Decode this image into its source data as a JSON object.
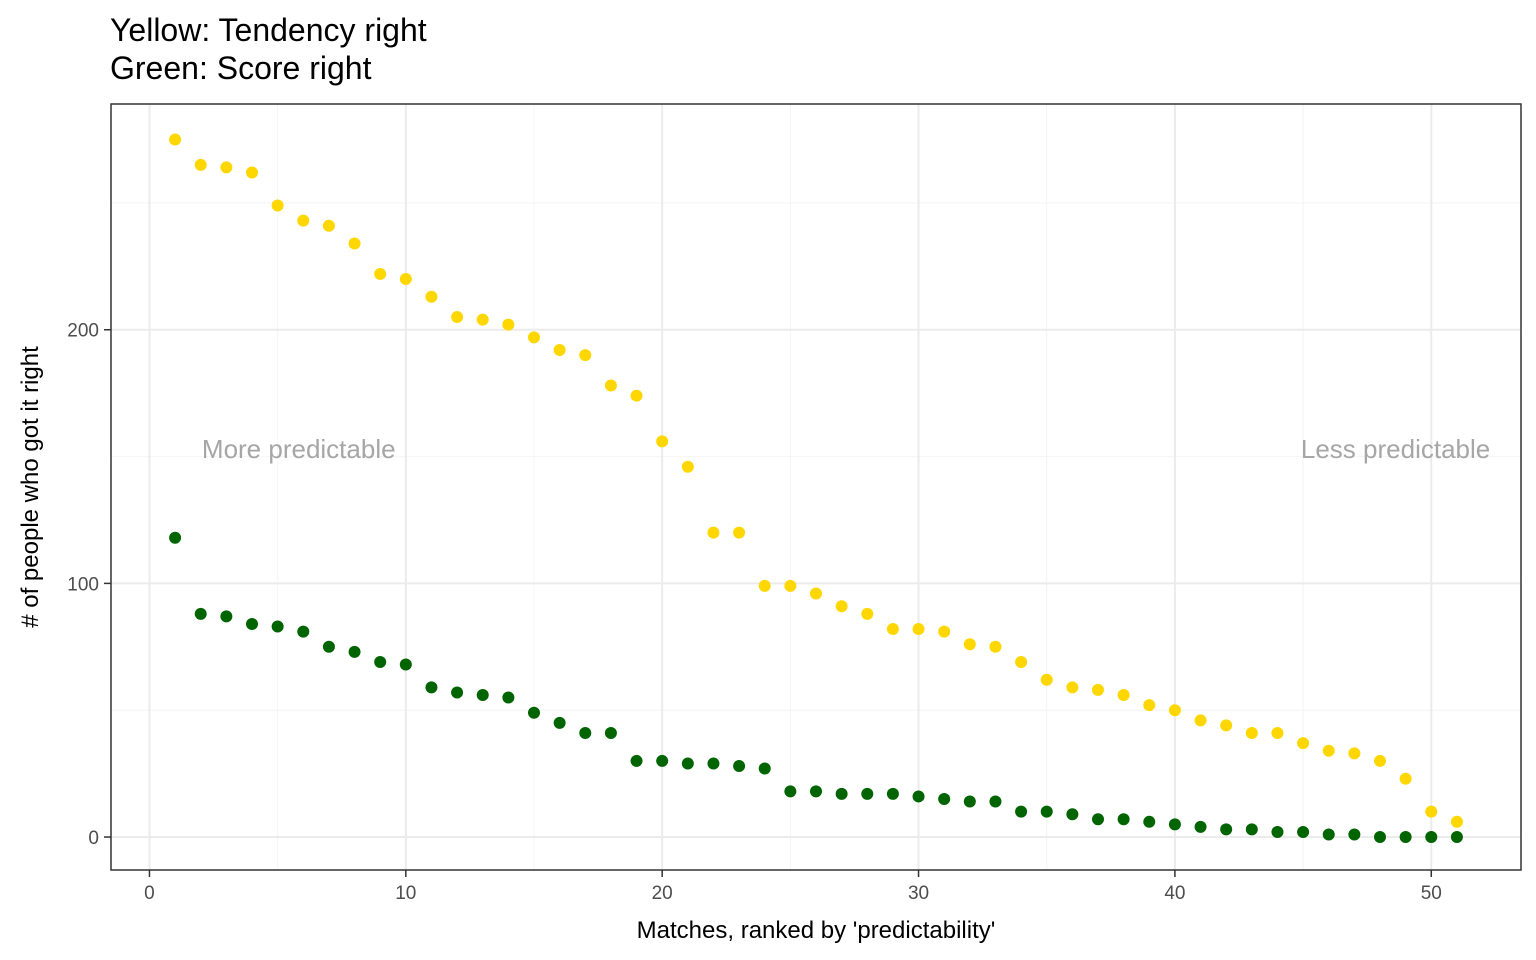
{
  "chart_data": {
    "type": "scatter",
    "title_lines": [
      "Yellow: Tendency right",
      "Green: Score right"
    ],
    "xlabel": "Matches, ranked by 'predictability'",
    "ylabel": "# of people who got it right",
    "xlim": [
      -1.5,
      53.5
    ],
    "ylim": [
      -13,
      289
    ],
    "x_ticks": [
      0,
      10,
      20,
      30,
      40,
      50
    ],
    "y_ticks": [
      0,
      100,
      200
    ],
    "grid": true,
    "annotations": [
      {
        "text": "More predictable",
        "x": 9.6,
        "y": 153
      },
      {
        "text": "Less predictable",
        "x": 52.3,
        "y": 153
      }
    ],
    "series": [
      {
        "color": "#FFD700",
        "x": [
          1,
          2,
          3,
          4,
          5,
          6,
          7,
          8,
          9,
          10,
          11,
          12,
          13,
          14,
          15,
          16,
          17,
          18,
          19,
          20,
          21,
          22,
          23,
          24,
          25,
          26,
          27,
          28,
          29,
          30,
          31,
          32,
          33,
          34,
          35,
          36,
          37,
          38,
          39,
          40,
          41,
          42,
          43,
          44,
          45,
          46,
          47,
          48,
          49,
          50,
          51
        ],
        "y": [
          275,
          265,
          264,
          262,
          249,
          243,
          241,
          234,
          222,
          220,
          213,
          205,
          204,
          202,
          197,
          192,
          190,
          178,
          174,
          156,
          146,
          120,
          120,
          99,
          99,
          96,
          91,
          88,
          82,
          82,
          81,
          76,
          75,
          69,
          62,
          59,
          58,
          56,
          52,
          50,
          46,
          44,
          41,
          41,
          37,
          34,
          33,
          30,
          23,
          10,
          6
        ]
      },
      {
        "color": "#006400",
        "x": [
          1,
          2,
          3,
          4,
          5,
          6,
          7,
          8,
          9,
          10,
          11,
          12,
          13,
          14,
          15,
          16,
          17,
          18,
          19,
          20,
          21,
          22,
          23,
          24,
          25,
          26,
          27,
          28,
          29,
          30,
          31,
          32,
          33,
          34,
          35,
          36,
          37,
          38,
          39,
          40,
          41,
          42,
          43,
          44,
          45,
          46,
          47,
          48,
          49,
          50,
          51
        ],
        "y": [
          118,
          88,
          87,
          84,
          83,
          81,
          75,
          73,
          69,
          68,
          59,
          57,
          56,
          55,
          49,
          45,
          41,
          41,
          30,
          30,
          29,
          29,
          28,
          27,
          18,
          18,
          17,
          17,
          17,
          16,
          15,
          14,
          14,
          10,
          10,
          9,
          7,
          7,
          6,
          5,
          4,
          3,
          3,
          2,
          2,
          1,
          1,
          0,
          0,
          0,
          0
        ]
      }
    ]
  }
}
